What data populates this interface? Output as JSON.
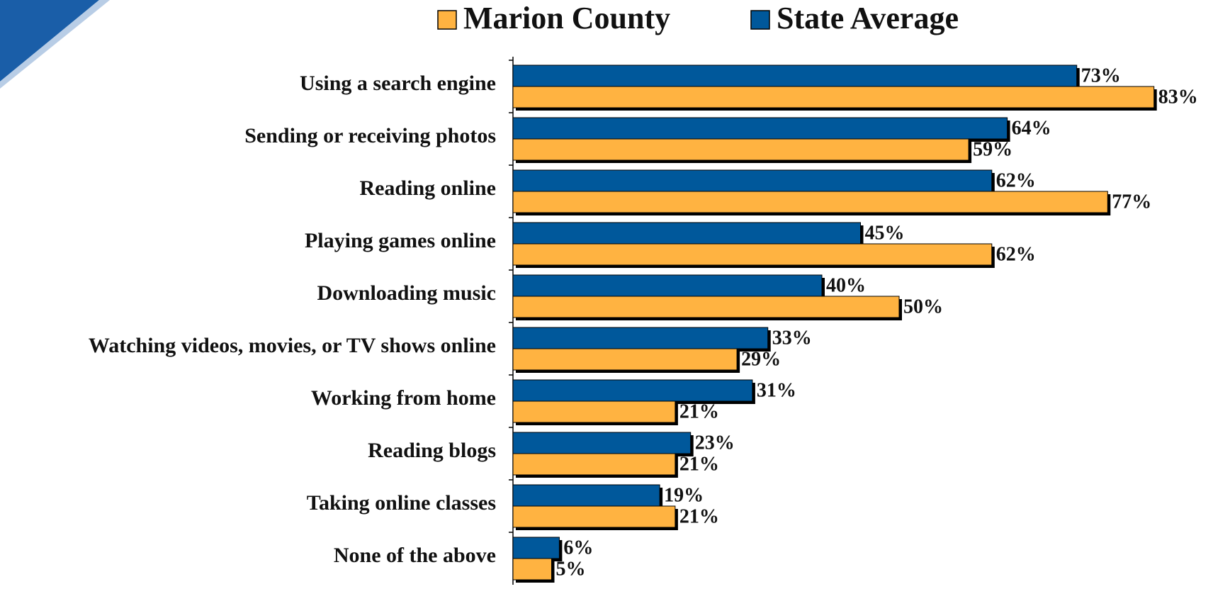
{
  "chart_data": {
    "type": "bar",
    "orientation": "horizontal",
    "categories": [
      "Using a search engine",
      "Sending or receiving photos",
      "Reading online",
      "Playing games online",
      "Downloading music",
      "Watching videos, movies, or TV shows online",
      "Working from home",
      "Reading blogs",
      "Taking online classes",
      "None of the above"
    ],
    "series": [
      {
        "name": "Marion County",
        "color": "#ffb341",
        "values": [
          83,
          59,
          77,
          62,
          50,
          29,
          21,
          21,
          21,
          5
        ],
        "value_labels": [
          "83%",
          "59%",
          "77%",
          "62%",
          "50%",
          "29%",
          "21%",
          "21%",
          "21%",
          "5%"
        ]
      },
      {
        "name": "State Average",
        "color": "#00589b",
        "values": [
          73,
          64,
          62,
          45,
          40,
          33,
          31,
          23,
          19,
          6
        ],
        "value_labels": [
          "73%",
          "64%",
          "62%",
          "45%",
          "40%",
          "33%",
          "31%",
          "23%",
          "19%",
          "6%"
        ]
      }
    ]
  }
}
